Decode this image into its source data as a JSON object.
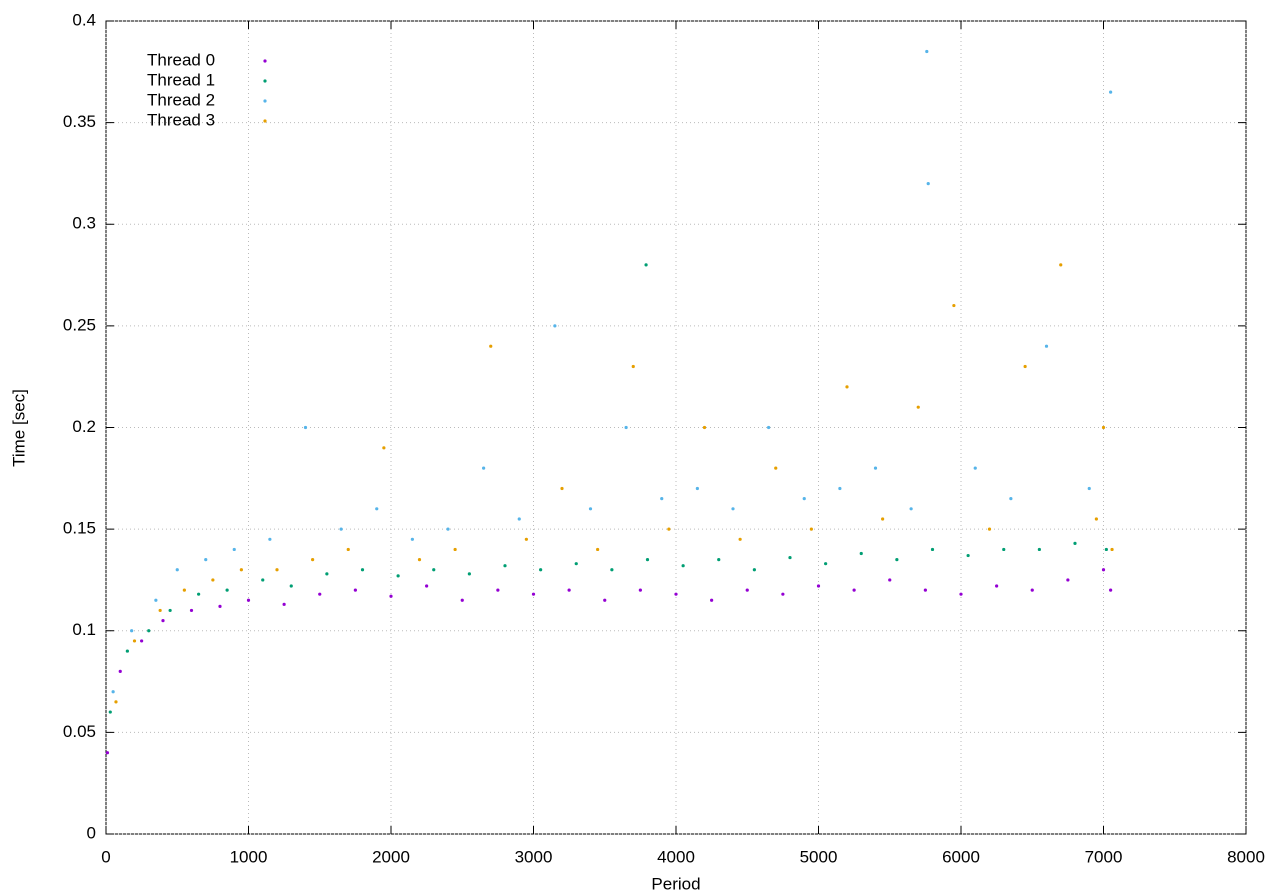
{
  "chart_data": {
    "type": "scatter",
    "xlabel": "Period",
    "ylabel": "Time [sec]",
    "xlim": [
      0,
      8000
    ],
    "ylim": [
      0,
      0.4
    ],
    "xticks": [
      0,
      1000,
      2000,
      3000,
      4000,
      5000,
      6000,
      7000,
      8000
    ],
    "yticks": [
      0,
      0.05,
      0.1,
      0.15,
      0.2,
      0.25,
      0.3,
      0.35,
      0.4
    ],
    "grid": true,
    "legend": "top-left",
    "series": [
      {
        "name": "Thread 0",
        "color": "#9400d3",
        "x": [
          10,
          100,
          250,
          400,
          600,
          800,
          1000,
          1250,
          1500,
          1750,
          2000,
          2250,
          2500,
          2750,
          3000,
          3250,
          3500,
          3750,
          4000,
          4250,
          4500,
          4750,
          5000,
          5250,
          5500,
          5750,
          6000,
          6250,
          6500,
          6750,
          7000,
          7050
        ],
        "y": [
          0.04,
          0.08,
          0.095,
          0.105,
          0.11,
          0.112,
          0.115,
          0.113,
          0.118,
          0.12,
          0.117,
          0.122,
          0.115,
          0.12,
          0.118,
          0.12,
          0.115,
          0.12,
          0.118,
          0.115,
          0.12,
          0.118,
          0.122,
          0.12,
          0.125,
          0.12,
          0.118,
          0.122,
          0.12,
          0.125,
          0.13,
          0.12
        ]
      },
      {
        "name": "Thread 1",
        "color": "#009e73",
        "x": [
          30,
          150,
          300,
          450,
          650,
          850,
          1100,
          1300,
          1550,
          1800,
          2050,
          2300,
          2550,
          2800,
          3050,
          3300,
          3550,
          3800,
          3790,
          4050,
          4300,
          4550,
          4800,
          5050,
          5300,
          5550,
          5800,
          6050,
          6300,
          6550,
          6800,
          7020
        ],
        "y": [
          0.06,
          0.09,
          0.1,
          0.11,
          0.118,
          0.12,
          0.125,
          0.122,
          0.128,
          0.13,
          0.127,
          0.13,
          0.128,
          0.132,
          0.13,
          0.133,
          0.13,
          0.135,
          0.28,
          0.132,
          0.135,
          0.13,
          0.136,
          0.133,
          0.138,
          0.135,
          0.14,
          0.137,
          0.14,
          0.14,
          0.143,
          0.14
        ]
      },
      {
        "name": "Thread 2",
        "color": "#56b4e9",
        "x": [
          50,
          180,
          350,
          500,
          700,
          900,
          1150,
          1400,
          1650,
          1900,
          2150,
          2400,
          2650,
          2900,
          3150,
          3400,
          3650,
          3900,
          4150,
          4400,
          4650,
          4900,
          5150,
          5400,
          5650,
          5760,
          5770,
          6100,
          6350,
          6600,
          6900,
          7050
        ],
        "y": [
          0.07,
          0.1,
          0.115,
          0.13,
          0.135,
          0.14,
          0.145,
          0.2,
          0.15,
          0.16,
          0.145,
          0.15,
          0.18,
          0.155,
          0.25,
          0.16,
          0.2,
          0.165,
          0.17,
          0.16,
          0.2,
          0.165,
          0.17,
          0.18,
          0.16,
          0.385,
          0.32,
          0.18,
          0.165,
          0.24,
          0.17,
          0.365
        ]
      },
      {
        "name": "Thread 3",
        "color": "#e69f00",
        "x": [
          70,
          200,
          380,
          550,
          750,
          950,
          1200,
          1450,
          1700,
          1950,
          2200,
          2450,
          2700,
          2950,
          3200,
          3450,
          3700,
          3950,
          4200,
          4450,
          4700,
          4950,
          5200,
          5450,
          5700,
          5950,
          6200,
          6450,
          6700,
          6950,
          7000,
          7060
        ],
        "y": [
          0.065,
          0.095,
          0.11,
          0.12,
          0.125,
          0.13,
          0.13,
          0.135,
          0.14,
          0.19,
          0.135,
          0.14,
          0.24,
          0.145,
          0.17,
          0.14,
          0.23,
          0.15,
          0.2,
          0.145,
          0.18,
          0.15,
          0.22,
          0.155,
          0.21,
          0.26,
          0.15,
          0.23,
          0.28,
          0.155,
          0.2,
          0.14
        ]
      }
    ]
  }
}
